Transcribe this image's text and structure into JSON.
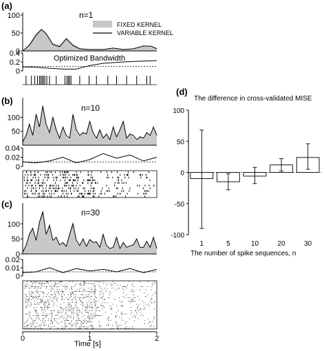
{
  "chart_data": [
    {
      "panel_label": "(a)",
      "type": "area",
      "title": "n=1",
      "legend": [
        "FIXED KERNEL",
        "VARIABLE KERNEL"
      ],
      "legend_position": "top-right",
      "rate": {
        "yticks": [
          "0",
          "50",
          "100"
        ],
        "ylim": [
          0,
          100
        ],
        "x": [
          0,
          0.1,
          0.2,
          0.28,
          0.35,
          0.45,
          0.55,
          0.65,
          0.75,
          0.85,
          1.0,
          1.2,
          1.35,
          1.5,
          1.65,
          1.8,
          1.92,
          2.0
        ],
        "fixed": [
          0,
          20,
          50,
          62,
          52,
          22,
          15,
          38,
          20,
          8,
          4,
          4,
          8,
          4,
          6,
          13,
          12,
          6
        ],
        "variable": [
          0,
          16,
          44,
          60,
          48,
          18,
          12,
          34,
          15,
          6,
          4,
          4,
          8,
          4,
          6,
          14,
          13,
          6
        ]
      },
      "bandwidth": {
        "label": "Optimized Bandwidth",
        "yticks": [
          "0",
          "0.2",
          "0.4"
        ],
        "ylim": [
          0,
          0.4
        ],
        "x": [
          0,
          0.2,
          0.4,
          0.6,
          0.8,
          0.9,
          1.0,
          1.2,
          1.5,
          1.8,
          2.0
        ],
        "variable": [
          0.09,
          0.08,
          0.06,
          0.04,
          0.04,
          0.08,
          0.12,
          0.17,
          0.2,
          0.22,
          0.23
        ],
        "fixed": [
          0.1,
          0.1,
          0.1,
          0.1,
          0.1,
          0.1,
          0.1,
          0.1,
          0.1,
          0.1,
          0.1
        ]
      },
      "spikes": [
        [
          0.05,
          0.13,
          0.18,
          0.22,
          0.25,
          0.27,
          0.29,
          0.31,
          0.33,
          0.36,
          0.4,
          0.5,
          0.63,
          0.66,
          0.68,
          0.7,
          0.72,
          0.85,
          0.99,
          1.1,
          1.27,
          1.4,
          1.55,
          1.7,
          1.85,
          1.9
        ]
      ]
    },
    {
      "panel_label": "(b)",
      "type": "area",
      "title": "n=10",
      "rate": {
        "yticks": [
          "50",
          "100"
        ],
        "ylim": [
          0,
          160
        ],
        "x": [
          0,
          0.05,
          0.1,
          0.15,
          0.2,
          0.25,
          0.3,
          0.35,
          0.4,
          0.45,
          0.5,
          0.55,
          0.6,
          0.65,
          0.7,
          0.75,
          0.8,
          0.85,
          0.9,
          0.95,
          1.0,
          1.05,
          1.1,
          1.15,
          1.2,
          1.25,
          1.3,
          1.35,
          1.4,
          1.45,
          1.5,
          1.55,
          1.6,
          1.65,
          1.7,
          1.75,
          1.8,
          1.85,
          1.9,
          1.95,
          2.0
        ],
        "fixed": [
          10,
          40,
          80,
          30,
          120,
          60,
          150,
          70,
          40,
          110,
          50,
          20,
          70,
          30,
          20,
          120,
          50,
          30,
          50,
          35,
          90,
          40,
          20,
          60,
          20,
          45,
          15,
          70,
          25,
          60,
          90,
          20,
          45,
          30,
          15,
          35,
          20,
          50,
          30,
          70,
          30
        ],
        "variable": [
          12,
          35,
          75,
          35,
          110,
          65,
          140,
          75,
          45,
          100,
          55,
          25,
          65,
          35,
          25,
          110,
          55,
          35,
          45,
          40,
          85,
          45,
          25,
          55,
          25,
          40,
          20,
          65,
          30,
          55,
          85,
          25,
          40,
          35,
          20,
          30,
          25,
          45,
          35,
          65,
          35
        ]
      },
      "bandwidth": {
        "yticks": [
          "0",
          "0.02",
          "0.04"
        ],
        "ylim": [
          0,
          0.04
        ],
        "x": [
          0,
          0.2,
          0.4,
          0.6,
          0.8,
          1.0,
          1.2,
          1.4,
          1.6,
          1.8,
          2.0
        ],
        "variable": [
          0.01,
          0.008,
          0.012,
          0.02,
          0.008,
          0.015,
          0.028,
          0.018,
          0.025,
          0.012,
          0.02
        ],
        "fixed": [
          0.01,
          0.01,
          0.01,
          0.01,
          0.01,
          0.01,
          0.01,
          0.01,
          0.01,
          0.01,
          0.01
        ]
      },
      "trials": 10
    },
    {
      "panel_label": "(c)",
      "type": "area",
      "title": "n=30",
      "rate": {
        "yticks": [
          "0",
          "50",
          "100"
        ],
        "ylim": [
          0,
          160
        ],
        "x": [
          0,
          0.05,
          0.1,
          0.15,
          0.2,
          0.25,
          0.3,
          0.35,
          0.4,
          0.45,
          0.5,
          0.55,
          0.6,
          0.65,
          0.7,
          0.75,
          0.8,
          0.85,
          0.9,
          0.95,
          1.0,
          1.05,
          1.1,
          1.15,
          1.2,
          1.25,
          1.3,
          1.35,
          1.4,
          1.45,
          1.5,
          1.55,
          1.6,
          1.65,
          1.7,
          1.75,
          1.8,
          1.85,
          1.9,
          1.95,
          2.0
        ],
        "fixed": [
          5,
          30,
          70,
          90,
          40,
          110,
          150,
          60,
          100,
          40,
          60,
          25,
          40,
          20,
          70,
          110,
          40,
          25,
          55,
          20,
          50,
          35,
          45,
          20,
          70,
          25,
          15,
          20,
          60,
          15,
          40,
          20,
          25,
          30,
          55,
          20,
          20,
          45,
          20,
          60,
          15
        ],
        "variable": [
          6,
          28,
          65,
          85,
          45,
          105,
          140,
          65,
          95,
          45,
          55,
          30,
          38,
          25,
          65,
          100,
          45,
          28,
          50,
          25,
          48,
          38,
          40,
          22,
          65,
          28,
          18,
          22,
          55,
          18,
          38,
          22,
          27,
          30,
          50,
          22,
          22,
          42,
          22,
          55,
          18
        ]
      },
      "bandwidth": {
        "yticks": [
          "0",
          "0.01",
          "0.02"
        ],
        "ylim": [
          0,
          0.02
        ],
        "x": [
          0,
          0.2,
          0.4,
          0.6,
          0.8,
          1.0,
          1.2,
          1.4,
          1.6,
          1.8,
          2.0
        ],
        "variable": [
          0.004,
          0.005,
          0.01,
          0.004,
          0.009,
          0.006,
          0.008,
          0.005,
          0.009,
          0.004,
          0.008
        ],
        "fixed": [
          0.005,
          0.005,
          0.005,
          0.005,
          0.005,
          0.005,
          0.005,
          0.005,
          0.005,
          0.005,
          0.005
        ]
      },
      "trials": 30,
      "xlabel": "Time [s]",
      "xticks": [
        "0",
        "1",
        "2"
      ],
      "xlim": [
        0,
        2
      ]
    },
    {
      "panel_label": "(d)",
      "type": "bar",
      "title": "The difference in cross-validated MISE",
      "categories": [
        "1",
        "5",
        "10",
        "20",
        "30"
      ],
      "values": [
        -10,
        -15,
        -6,
        12,
        24
      ],
      "errors": [
        [
          -90,
          68
        ],
        [
          -28,
          -2
        ],
        [
          -18,
          8
        ],
        [
          2,
          22
        ],
        [
          5,
          46
        ]
      ],
      "xlabel": "The number of spike sequences, n",
      "ylim": [
        -100,
        100
      ],
      "yticks": [
        "-100",
        "-50",
        "0",
        "50",
        "100"
      ]
    }
  ]
}
